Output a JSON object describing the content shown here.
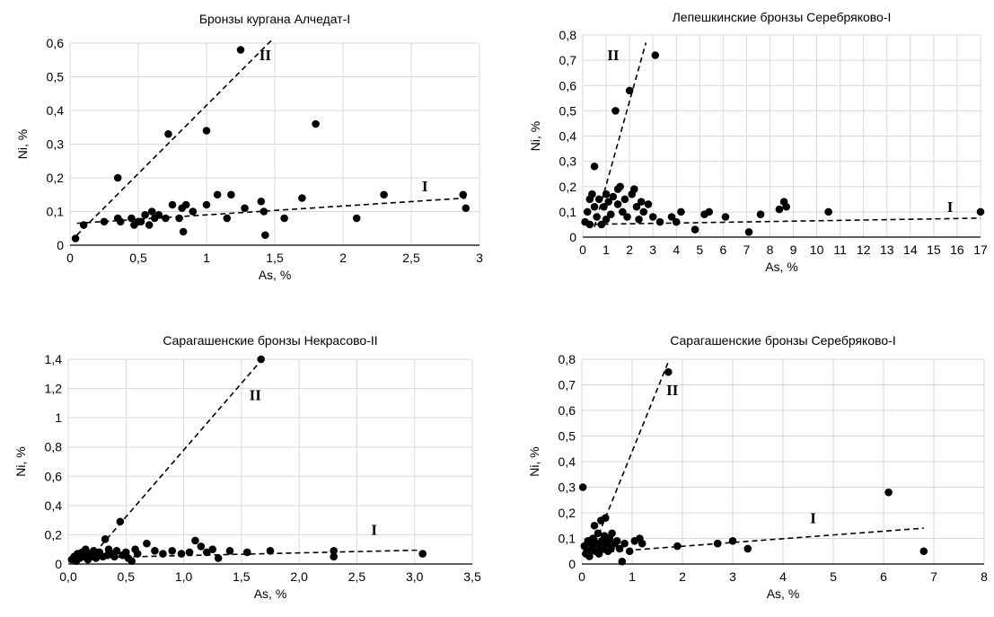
{
  "chart_data": [
    {
      "type": "scatter",
      "title": "Бронзы кургана Алчедат-I",
      "xlabel": "As, %",
      "ylabel": "Ni, %",
      "xlim": [
        0,
        3
      ],
      "ylim": [
        0,
        0.6
      ],
      "x_ticks": [
        0,
        0.5,
        1,
        1.5,
        2,
        2.5,
        3
      ],
      "x_tick_labels": [
        "0",
        "0,5",
        "1",
        "1,5",
        "2",
        "2,5",
        "3"
      ],
      "y_ticks": [
        0,
        0.1,
        0.2,
        0.3,
        0.4,
        0.5,
        0.6
      ],
      "y_tick_labels": [
        "0",
        "0,1",
        "0,2",
        "0,3",
        "0,4",
        "0,5",
        "0,6"
      ],
      "grid": true,
      "points": [
        [
          0.04,
          0.02
        ],
        [
          0.1,
          0.06
        ],
        [
          0.25,
          0.07
        ],
        [
          0.35,
          0.2
        ],
        [
          0.35,
          0.08
        ],
        [
          0.37,
          0.07
        ],
        [
          0.45,
          0.08
        ],
        [
          0.47,
          0.06
        ],
        [
          0.5,
          0.07
        ],
        [
          0.52,
          0.07
        ],
        [
          0.55,
          0.09
        ],
        [
          0.58,
          0.06
        ],
        [
          0.6,
          0.1
        ],
        [
          0.62,
          0.08
        ],
        [
          0.65,
          0.09
        ],
        [
          0.7,
          0.08
        ],
        [
          0.72,
          0.33
        ],
        [
          0.75,
          0.12
        ],
        [
          0.8,
          0.08
        ],
        [
          0.82,
          0.11
        ],
        [
          0.83,
          0.04
        ],
        [
          0.85,
          0.12
        ],
        [
          0.9,
          0.1
        ],
        [
          1.0,
          0.34
        ],
        [
          1.0,
          0.12
        ],
        [
          1.08,
          0.15
        ],
        [
          1.15,
          0.08
        ],
        [
          1.18,
          0.15
        ],
        [
          1.25,
          0.58
        ],
        [
          1.28,
          0.11
        ],
        [
          1.4,
          0.13
        ],
        [
          1.42,
          0.1
        ],
        [
          1.43,
          0.03
        ],
        [
          1.57,
          0.08
        ],
        [
          1.7,
          0.14
        ],
        [
          1.8,
          0.36
        ],
        [
          2.1,
          0.08
        ],
        [
          2.3,
          0.15
        ],
        [
          2.88,
          0.15
        ],
        [
          2.9,
          0.11
        ]
      ],
      "trend_lines": [
        {
          "label": "I",
          "x": [
            0.05,
            2.9
          ],
          "y": [
            0.065,
            0.14
          ]
        },
        {
          "label": "II",
          "x": [
            0.05,
            1.48
          ],
          "y": [
            0.03,
            0.61
          ]
        }
      ],
      "annotations": [
        {
          "text": "II",
          "x": 1.43,
          "y": 0.55
        },
        {
          "text": "I",
          "x": 2.6,
          "y": 0.16
        }
      ]
    },
    {
      "type": "scatter",
      "title": "Лепешкинские бронзы Серебряково-I",
      "xlabel": "As, %",
      "ylabel": "Ni, %",
      "xlim": [
        0,
        17
      ],
      "ylim": [
        0,
        0.8
      ],
      "x_ticks": [
        0,
        1,
        2,
        3,
        4,
        5,
        6,
        7,
        8,
        9,
        10,
        11,
        12,
        13,
        14,
        15,
        16,
        17
      ],
      "x_tick_labels": [
        "0",
        "1",
        "2",
        "3",
        "4",
        "5",
        "6",
        "7",
        "8",
        "9",
        "10",
        "11",
        "12",
        "13",
        "14",
        "15",
        "16",
        "17"
      ],
      "y_ticks": [
        0,
        0.1,
        0.2,
        0.3,
        0.4,
        0.5,
        0.6,
        0.7,
        0.8
      ],
      "y_tick_labels": [
        "0",
        "0,1",
        "0,2",
        "0,3",
        "0,4",
        "0,5",
        "0,6",
        "0,7",
        "0,8"
      ],
      "grid": true,
      "points": [
        [
          0.1,
          0.06
        ],
        [
          0.2,
          0.1
        ],
        [
          0.3,
          0.05
        ],
        [
          0.3,
          0.15
        ],
        [
          0.4,
          0.17
        ],
        [
          0.5,
          0.12
        ],
        [
          0.5,
          0.28
        ],
        [
          0.6,
          0.08
        ],
        [
          0.7,
          0.15
        ],
        [
          0.8,
          0.05
        ],
        [
          0.9,
          0.12
        ],
        [
          1.0,
          0.17
        ],
        [
          1.0,
          0.07
        ],
        [
          1.1,
          0.14
        ],
        [
          1.2,
          0.09
        ],
        [
          1.3,
          0.16
        ],
        [
          1.4,
          0.5
        ],
        [
          1.5,
          0.13
        ],
        [
          1.5,
          0.19
        ],
        [
          1.6,
          0.2
        ],
        [
          1.7,
          0.1
        ],
        [
          1.8,
          0.15
        ],
        [
          1.9,
          0.08
        ],
        [
          2.0,
          0.58
        ],
        [
          2.1,
          0.17
        ],
        [
          2.2,
          0.19
        ],
        [
          2.3,
          0.12
        ],
        [
          2.4,
          0.07
        ],
        [
          2.5,
          0.14
        ],
        [
          2.6,
          0.1
        ],
        [
          2.8,
          0.13
        ],
        [
          3.0,
          0.08
        ],
        [
          3.1,
          0.72
        ],
        [
          3.3,
          0.06
        ],
        [
          3.8,
          0.08
        ],
        [
          4.0,
          0.06
        ],
        [
          4.2,
          0.1
        ],
        [
          4.8,
          0.03
        ],
        [
          5.2,
          0.09
        ],
        [
          5.4,
          0.1
        ],
        [
          6.1,
          0.08
        ],
        [
          7.1,
          0.02
        ],
        [
          7.6,
          0.09
        ],
        [
          8.4,
          0.11
        ],
        [
          8.6,
          0.14
        ],
        [
          8.7,
          0.12
        ],
        [
          10.5,
          0.1
        ],
        [
          17.0,
          0.1
        ]
      ],
      "trend_lines": [
        {
          "label": "I",
          "x": [
            0.1,
            17
          ],
          "y": [
            0.05,
            0.075
          ]
        },
        {
          "label": "II",
          "x": [
            0.5,
            2.7
          ],
          "y": [
            0.04,
            0.77
          ]
        }
      ],
      "annotations": [
        {
          "text": "II",
          "x": 1.3,
          "y": 0.7
        },
        {
          "text": "I",
          "x": 15.7,
          "y": 0.1
        }
      ]
    },
    {
      "type": "scatter",
      "title": "Сарагашенские бронзы Некрасово-II",
      "xlabel": "As, %",
      "ylabel": "Ni, %",
      "xlim": [
        0,
        3.5
      ],
      "ylim": [
        0,
        1.4
      ],
      "x_ticks": [
        0,
        0.5,
        1,
        1.5,
        2,
        2.5,
        3,
        3.5
      ],
      "x_tick_labels": [
        "0,0",
        "0,5",
        "1,0",
        "1,5",
        "2,0",
        "2,5",
        "3,0",
        "3,5"
      ],
      "y_ticks": [
        0,
        0.2,
        0.4,
        0.6,
        0.8,
        1,
        1.2,
        1.4
      ],
      "y_tick_labels": [
        "0",
        "0,2",
        "0,4",
        "0,6",
        "0,8",
        "1",
        "1,2",
        "1,4"
      ],
      "grid": true,
      "points": [
        [
          0.03,
          0.03
        ],
        [
          0.05,
          0.05
        ],
        [
          0.07,
          0.02
        ],
        [
          0.08,
          0.07
        ],
        [
          0.1,
          0.04
        ],
        [
          0.12,
          0.08
        ],
        [
          0.14,
          0.05
        ],
        [
          0.15,
          0.1
        ],
        [
          0.17,
          0.03
        ],
        [
          0.18,
          0.07
        ],
        [
          0.2,
          0.05
        ],
        [
          0.22,
          0.09
        ],
        [
          0.24,
          0.04
        ],
        [
          0.25,
          0.06
        ],
        [
          0.27,
          0.08
        ],
        [
          0.3,
          0.05
        ],
        [
          0.32,
          0.17
        ],
        [
          0.34,
          0.06
        ],
        [
          0.35,
          0.1
        ],
        [
          0.38,
          0.07
        ],
        [
          0.4,
          0.05
        ],
        [
          0.42,
          0.09
        ],
        [
          0.45,
          0.29
        ],
        [
          0.47,
          0.06
        ],
        [
          0.5,
          0.08
        ],
        [
          0.52,
          0.04
        ],
        [
          0.55,
          0.02
        ],
        [
          0.58,
          0.1
        ],
        [
          0.6,
          0.07
        ],
        [
          0.68,
          0.14
        ],
        [
          0.75,
          0.09
        ],
        [
          0.82,
          0.07
        ],
        [
          0.9,
          0.09
        ],
        [
          0.98,
          0.07
        ],
        [
          1.05,
          0.08
        ],
        [
          1.1,
          0.16
        ],
        [
          1.15,
          0.12
        ],
        [
          1.2,
          0.08
        ],
        [
          1.25,
          0.1
        ],
        [
          1.3,
          0.04
        ],
        [
          1.4,
          0.09
        ],
        [
          1.55,
          0.08
        ],
        [
          1.67,
          1.4
        ],
        [
          1.75,
          0.09
        ],
        [
          2.3,
          0.09
        ],
        [
          2.3,
          0.05
        ],
        [
          3.07,
          0.07
        ]
      ],
      "trend_lines": [
        {
          "label": "I",
          "x": [
            0.02,
            3.05
          ],
          "y": [
            0.04,
            0.095
          ]
        },
        {
          "label": "II",
          "x": [
            0.18,
            1.68
          ],
          "y": [
            0.03,
            1.4
          ]
        }
      ],
      "annotations": [
        {
          "text": "II",
          "x": 1.62,
          "y": 1.12
        },
        {
          "text": "I",
          "x": 2.65,
          "y": 0.2
        }
      ]
    },
    {
      "type": "scatter",
      "title": "Сарагашенские бронзы Серебряково-I",
      "xlabel": "As, %",
      "ylabel": "Ni, %",
      "xlim": [
        0,
        8
      ],
      "ylim": [
        0,
        0.8
      ],
      "x_ticks": [
        0,
        1,
        2,
        3,
        4,
        5,
        6,
        7,
        8
      ],
      "x_tick_labels": [
        "0",
        "1",
        "2",
        "3",
        "4",
        "5",
        "6",
        "7",
        "8"
      ],
      "y_ticks": [
        0,
        0.1,
        0.2,
        0.3,
        0.4,
        0.5,
        0.6,
        0.7,
        0.8
      ],
      "y_tick_labels": [
        "0",
        "0,1",
        "0,2",
        "0,3",
        "0,4",
        "0,5",
        "0,6",
        "0,7",
        "0,8"
      ],
      "grid": true,
      "points": [
        [
          0.02,
          0.3
        ],
        [
          0.05,
          0.07
        ],
        [
          0.08,
          0.04
        ],
        [
          0.1,
          0.05
        ],
        [
          0.12,
          0.09
        ],
        [
          0.15,
          0.03
        ],
        [
          0.18,
          0.08
        ],
        [
          0.2,
          0.06
        ],
        [
          0.22,
          0.1
        ],
        [
          0.25,
          0.15
        ],
        [
          0.27,
          0.05
        ],
        [
          0.3,
          0.08
        ],
        [
          0.32,
          0.12
        ],
        [
          0.34,
          0.04
        ],
        [
          0.36,
          0.07
        ],
        [
          0.38,
          0.17
        ],
        [
          0.4,
          0.09
        ],
        [
          0.42,
          0.06
        ],
        [
          0.45,
          0.11
        ],
        [
          0.47,
          0.18
        ],
        [
          0.5,
          0.08
        ],
        [
          0.52,
          0.05
        ],
        [
          0.55,
          0.1
        ],
        [
          0.58,
          0.06
        ],
        [
          0.6,
          0.12
        ],
        [
          0.65,
          0.08
        ],
        [
          0.7,
          0.09
        ],
        [
          0.75,
          0.06
        ],
        [
          0.8,
          0.01
        ],
        [
          0.85,
          0.08
        ],
        [
          0.95,
          0.05
        ],
        [
          1.05,
          0.09
        ],
        [
          1.15,
          0.1
        ],
        [
          1.2,
          0.08
        ],
        [
          1.72,
          0.75
        ],
        [
          1.9,
          0.07
        ],
        [
          2.7,
          0.08
        ],
        [
          3.0,
          0.09
        ],
        [
          3.3,
          0.06
        ],
        [
          6.1,
          0.28
        ],
        [
          6.8,
          0.05
        ]
      ],
      "trend_lines": [
        {
          "label": "I",
          "x": [
            0.0,
            6.8
          ],
          "y": [
            0.04,
            0.14
          ]
        },
        {
          "label": "II",
          "x": [
            0.2,
            1.72
          ],
          "y": [
            0.05,
            0.79
          ]
        }
      ],
      "annotations": [
        {
          "text": "II",
          "x": 1.8,
          "y": 0.66
        },
        {
          "text": "I",
          "x": 4.6,
          "y": 0.16
        }
      ]
    }
  ]
}
